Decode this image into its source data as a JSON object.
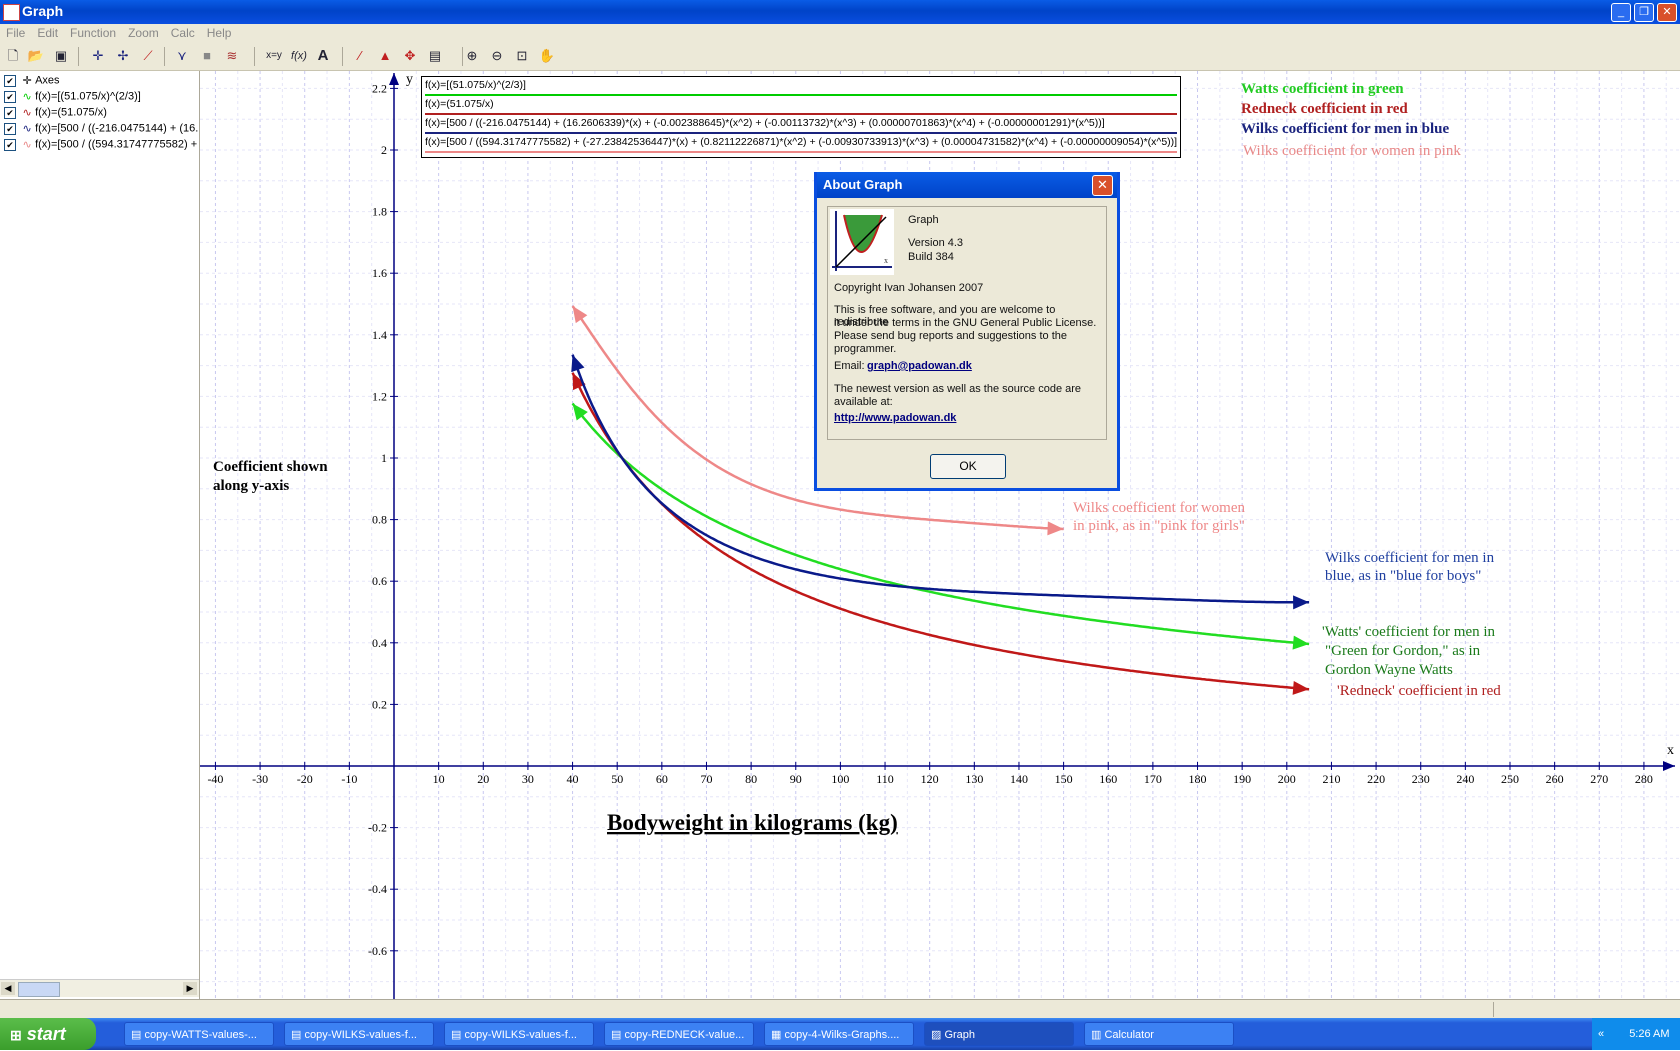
{
  "window": {
    "title": "Graph",
    "min": "_",
    "max": "❐",
    "close": "✕"
  },
  "menu": [
    "File",
    "Edit",
    "Function",
    "Zoom",
    "Calc",
    "Help"
  ],
  "toolbar_icons": [
    "new-icon",
    "open-icon",
    "save-icon",
    "insert-axes-icon",
    "insert-function-icon",
    "insert-point-series-icon",
    "insert-tangent-icon",
    "insert-shading-icon",
    "insert-relation-icon",
    "evaluate-icon",
    "table-icon",
    "label-icon",
    "trendline-icon",
    "integral-icon",
    "curve-fit-icon",
    "table-window-icon",
    "zoom-in-icon",
    "zoom-out-icon",
    "zoom-window-icon",
    "move-icon"
  ],
  "toolbar_labels": {
    "xy": "x=y",
    "fx": "f(x)",
    "text": "A"
  },
  "function_list": [
    {
      "label": "Axes",
      "icon": "axes-icon",
      "color": "#000000"
    },
    {
      "label": "f(x)=[(51.075/x)^(2/3)]",
      "icon": "green-curve-icon",
      "color": "#00cc00"
    },
    {
      "label": "f(x)=(51.075/x)",
      "icon": "red-curve-icon",
      "color": "#b02020"
    },
    {
      "label": "f(x)=[500 / ((-216.0475144) + (16.",
      "icon": "blue-curve-icon",
      "color": "#1a237e"
    },
    {
      "label": "f(x)=[500 / ((594.31747775582) +",
      "icon": "pink-curve-icon",
      "color": "#e88888"
    }
  ],
  "legend": {
    "rows": [
      {
        "text": "f(x)=[(51.075/x)^(2/3)]",
        "color": "#00cc00"
      },
      {
        "text": "f(x)=(51.075/x)",
        "color": "#b02020"
      },
      {
        "text": "f(x)=[500 / ((-216.0475144) + (16.2606339)*(x) + (-0.002388645)*(x^2) + (-0.00113732)*(x^3) + (0.00000701863)*(x^4) + (-0.00000001291)*(x^5))]",
        "color": "#1a237e"
      },
      {
        "text": "f(x)=[500 / ((594.31747775582) + (-27.23842536447)*(x) + (0.82112226871)*(x^2) + (-0.00930733913)*(x^3) + (0.00004731582)*(x^4) + (-0.00000009054)*(x^5))]",
        "color": "#e88888"
      }
    ],
    "side_labels": [
      {
        "text": "Watts coefficient in green",
        "color": "#22cc22"
      },
      {
        "text": "Redneck coefficient in red",
        "color": "#b02020"
      },
      {
        "text": "Wilks coefficient for men in blue",
        "color": "#1a237e"
      },
      {
        "text": "Wilks coefficient for women in pink",
        "color": "#e88888"
      }
    ]
  },
  "annotations": {
    "y_axis_note": [
      "Coefficient shown",
      "along y-axis"
    ],
    "x_axis_title": "Bodyweight  in  kilograms  (kg)",
    "pink_note": [
      "Wilks coefficient for women",
      "in pink, as in \"pink for girls\""
    ],
    "blue_note": [
      "Wilks coefficient for men in",
      "blue, as in \"blue for boys\""
    ],
    "green_note": [
      "'Watts' coefficient for men in",
      "\"Green for Gordon,\" as in",
      "Gordon Wayne Watts"
    ],
    "red_note": "'Redneck' coefficient in red"
  },
  "chart_data": {
    "type": "line",
    "x_axis_label": "x",
    "y_axis_label": "y",
    "xlim": [
      -43,
      289
    ],
    "ylim": [
      -0.75,
      2.25
    ],
    "x_ticks": [
      -40,
      -30,
      -20,
      -10,
      10,
      20,
      30,
      40,
      50,
      60,
      70,
      80,
      90,
      100,
      110,
      120,
      130,
      140,
      150,
      160,
      170,
      180,
      190,
      200,
      210,
      220,
      230,
      240,
      250,
      260,
      270,
      280
    ],
    "y_ticks": [
      -0.6,
      -0.4,
      -0.2,
      0.2,
      0.4,
      0.6,
      0.8,
      1,
      1.2,
      1.4,
      1.6,
      1.8,
      2,
      2.2
    ],
    "grid": true,
    "series": [
      {
        "name": "f(x)=[(51.075/x)^(2/3)]",
        "color": "#22dd22",
        "domain": [
          40,
          205
        ]
      },
      {
        "name": "f(x)=(51.075/x)",
        "color": "#c01818",
        "domain": [
          40,
          205
        ]
      },
      {
        "name": "f(x)=[500 / ((-216.0475144) + ...)]",
        "color": "#0a1a8a",
        "domain": [
          40,
          205
        ]
      },
      {
        "name": "f(x)=[500 / ((594.31747775582) + ...)]",
        "color": "#ee8888",
        "domain": [
          40,
          150
        ]
      }
    ]
  },
  "about_dialog": {
    "title": "About Graph",
    "app_name": "Graph",
    "version": "Version 4.3",
    "build": "Build 384",
    "copyright": "Copyright Ivan Johansen 2007",
    "license": [
      "This is free software, and you are welcome to redistribute",
      "it under the terms in the GNU General Public License.",
      "Please send bug reports and suggestions to the",
      "programmer."
    ],
    "email_label": "Email:",
    "email": "graph@padowan.dk",
    "newest": [
      "The newest version as well as the source code are",
      "available at:"
    ],
    "url": "http://www.padowan.dk",
    "ok": "OK"
  },
  "taskbar": {
    "start": "start",
    "tasks": [
      {
        "label": "copy-WATTS-values-...",
        "active": false
      },
      {
        "label": "copy-WILKS-values-f...",
        "active": false
      },
      {
        "label": "copy-WILKS-values-f...",
        "active": false
      },
      {
        "label": "copy-REDNECK-value...",
        "active": false
      },
      {
        "label": "copy-4-Wilks-Graphs....",
        "active": false
      },
      {
        "label": "Graph",
        "active": true
      },
      {
        "label": "Calculator",
        "active": false
      }
    ],
    "clock": "5:26 AM"
  }
}
